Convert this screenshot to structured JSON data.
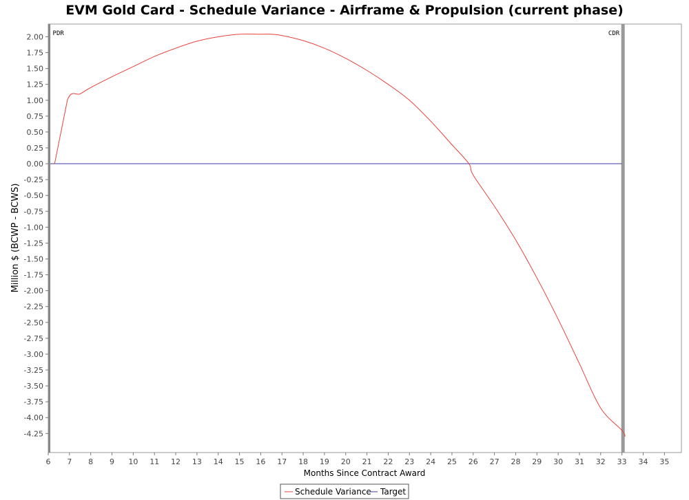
{
  "chart_data": {
    "type": "line",
    "title": "EVM Gold Card - Schedule Variance - Airframe & Propulsion (current phase)",
    "xlabel": "Months Since Contract Award",
    "ylabel": "Million $ (BCWP - BCWS)",
    "xlim": [
      6,
      35.8
    ],
    "ylim": [
      -4.55,
      2.2
    ],
    "x_ticks": [
      6,
      7,
      8,
      9,
      10,
      11,
      12,
      13,
      14,
      15,
      16,
      17,
      18,
      19,
      20,
      21,
      22,
      23,
      24,
      25,
      26,
      27,
      28,
      29,
      30,
      31,
      32,
      33,
      34,
      35
    ],
    "x_tick_labels": [
      "6",
      "7",
      "8",
      "9",
      "10",
      "11",
      "12",
      "13",
      "14",
      "15",
      "16",
      "17",
      "18",
      "19",
      "20",
      "21",
      "22",
      "23",
      "24",
      "25",
      "26",
      "27",
      "28",
      "29",
      "30",
      "31",
      "32",
      "33",
      "34",
      "35"
    ],
    "y_ticks": [
      2.0,
      1.75,
      1.5,
      1.25,
      1.0,
      0.75,
      0.5,
      0.25,
      0.0,
      -0.25,
      -0.5,
      -0.75,
      -1.0,
      -1.25,
      -1.5,
      -1.75,
      -2.0,
      -2.25,
      -2.5,
      -2.75,
      -3.0,
      -3.25,
      -3.5,
      -3.75,
      -4.0,
      -4.25
    ],
    "y_tick_labels": [
      "2.00",
      "1.75",
      "1.50",
      "1.25",
      "1.00",
      "0.75",
      "0.50",
      "0.25",
      "0.00",
      "-0.25",
      "-0.50",
      "-0.75",
      "-1.00",
      "-1.25",
      "-1.50",
      "-1.75",
      "-2.00",
      "-2.25",
      "-2.50",
      "-2.75",
      "-3.00",
      "-3.25",
      "-3.50",
      "-3.75",
      "-4.00",
      "-4.25"
    ],
    "grid": false,
    "legend_position": "bottom-center",
    "series": [
      {
        "name": "Schedule Variance",
        "color": "#e8403a",
        "x": [
          6.3,
          6.9,
          7.5,
          8,
          9,
          10,
          11,
          12,
          13,
          14,
          15,
          16,
          16.5,
          17,
          18,
          19,
          20,
          21,
          22,
          23,
          24,
          25,
          25.8,
          26,
          27,
          28,
          29,
          30,
          31,
          32,
          33,
          33.15
        ],
        "y": [
          0.0,
          1.0,
          1.1,
          1.2,
          1.37,
          1.53,
          1.69,
          1.82,
          1.93,
          2.0,
          2.04,
          2.04,
          2.04,
          2.02,
          1.94,
          1.82,
          1.66,
          1.47,
          1.25,
          1.0,
          0.67,
          0.3,
          0.0,
          -0.18,
          -0.67,
          -1.2,
          -1.8,
          -2.45,
          -3.15,
          -3.85,
          -4.2,
          -4.3
        ]
      },
      {
        "name": "Target",
        "color": "#3a3aa8",
        "x": [
          6.1,
          33
        ],
        "y": [
          0.0,
          0.0
        ]
      }
    ],
    "markers": [
      {
        "label": "PDR",
        "x": 6.05,
        "color": "#888888"
      },
      {
        "label": "CDR",
        "x": 33.05,
        "color": "#999999"
      }
    ]
  }
}
